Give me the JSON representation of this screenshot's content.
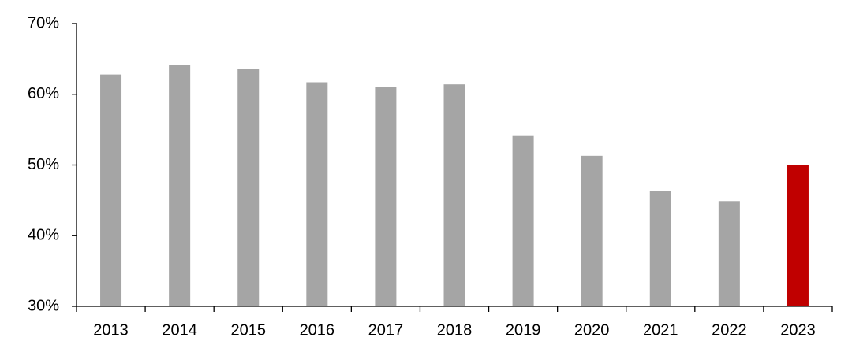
{
  "chart_data": {
    "type": "bar",
    "categories": [
      "2013",
      "2014",
      "2015",
      "2016",
      "2017",
      "2018",
      "2019",
      "2020",
      "2021",
      "2022",
      "2023"
    ],
    "values": [
      62.8,
      64.2,
      63.6,
      61.7,
      61.0,
      61.4,
      54.1,
      51.3,
      46.3,
      44.9,
      50.0
    ],
    "colors": [
      "#a5a5a5",
      "#a5a5a5",
      "#a5a5a5",
      "#a5a5a5",
      "#a5a5a5",
      "#a5a5a5",
      "#a5a5a5",
      "#a5a5a5",
      "#a5a5a5",
      "#a5a5a5",
      "#c00000"
    ],
    "ylim": [
      30,
      70
    ],
    "yticks": [
      {
        "value": 30,
        "label": "30%"
      },
      {
        "value": 40,
        "label": "40%"
      },
      {
        "value": 50,
        "label": "50%"
      },
      {
        "value": 60,
        "label": "60%"
      },
      {
        "value": 70,
        "label": "70%"
      }
    ],
    "grid": false
  }
}
